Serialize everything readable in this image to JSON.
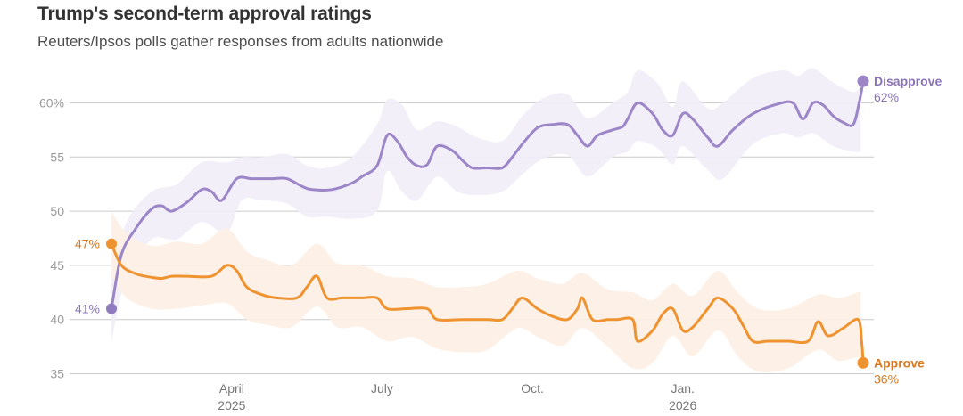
{
  "title": "Trump's second-term approval ratings",
  "subtitle": "Reuters/Ipsos polls gather responses from adults nationwide",
  "colors": {
    "disapprove": "#9c86c7",
    "disapprove_label": "#8a74b9",
    "disapprove_band": "#f1edf8",
    "approve": "#ef9230",
    "approve_label": "#d9771c",
    "approve_band": "#fdf0e4",
    "grid": "#cccccc",
    "start_dot": "#8f7bc0"
  },
  "chart_data": {
    "type": "line",
    "title": "Trump's second-term approval ratings",
    "subtitle": "Reuters/Ipsos polls gather responses from adults nationwide",
    "xlabel": "",
    "ylabel": "",
    "ylim": [
      35,
      62
    ],
    "xlim": [
      0,
      15
    ],
    "y_ticks": [
      {
        "value": 60,
        "label": "60%"
      },
      {
        "value": 55,
        "label": "55"
      },
      {
        "value": 50,
        "label": "50"
      },
      {
        "value": 45,
        "label": "45"
      },
      {
        "value": 40,
        "label": "40"
      },
      {
        "value": 35,
        "label": "35"
      }
    ],
    "x_ticks": [
      {
        "value": 2.4,
        "label": "April",
        "sublabel": "2025"
      },
      {
        "value": 5.4,
        "label": "July",
        "sublabel": ""
      },
      {
        "value": 8.4,
        "label": "Oct.",
        "sublabel": ""
      },
      {
        "value": 11.4,
        "label": "Jan.",
        "sublabel": "2026"
      }
    ],
    "series": [
      {
        "name": "Disapprove",
        "start_label": "41%",
        "end_label": "62%",
        "points": [
          [
            0.0,
            41
          ],
          [
            0.2,
            46
          ],
          [
            0.5,
            48.5
          ],
          [
            0.8,
            50.2
          ],
          [
            1.0,
            50.5
          ],
          [
            1.2,
            50.0
          ],
          [
            1.5,
            50.8
          ],
          [
            1.8,
            52.0
          ],
          [
            2.0,
            51.8
          ],
          [
            2.2,
            51.0
          ],
          [
            2.5,
            53.0
          ],
          [
            2.8,
            53.0
          ],
          [
            3.2,
            53.0
          ],
          [
            3.5,
            53.0
          ],
          [
            3.8,
            52.3
          ],
          [
            4.0,
            52.0
          ],
          [
            4.4,
            52.0
          ],
          [
            4.8,
            52.6
          ],
          [
            5.0,
            53.2
          ],
          [
            5.3,
            54.2
          ],
          [
            5.5,
            57.0
          ],
          [
            5.7,
            56.5
          ],
          [
            5.9,
            55.0
          ],
          [
            6.1,
            54.2
          ],
          [
            6.3,
            54.3
          ],
          [
            6.5,
            56.0
          ],
          [
            6.8,
            55.6
          ],
          [
            7.0,
            54.7
          ],
          [
            7.2,
            54.0
          ],
          [
            7.5,
            54.0
          ],
          [
            7.8,
            54.0
          ],
          [
            8.0,
            55.0
          ],
          [
            8.2,
            56.2
          ],
          [
            8.5,
            57.7
          ],
          [
            8.8,
            58.0
          ],
          [
            9.1,
            58.0
          ],
          [
            9.3,
            57.0
          ],
          [
            9.5,
            56.0
          ],
          [
            9.7,
            57.0
          ],
          [
            10.0,
            57.5
          ],
          [
            10.2,
            57.8
          ],
          [
            10.3,
            58.5
          ],
          [
            10.5,
            60.0
          ],
          [
            10.8,
            59.0
          ],
          [
            11.0,
            57.5
          ],
          [
            11.2,
            57.0
          ],
          [
            11.4,
            59.0
          ],
          [
            11.6,
            58.5
          ],
          [
            11.9,
            56.8
          ],
          [
            12.1,
            56.0
          ],
          [
            12.4,
            57.5
          ],
          [
            12.8,
            59.0
          ],
          [
            13.3,
            59.9
          ],
          [
            13.6,
            60.0
          ],
          [
            13.8,
            58.5
          ],
          [
            14.0,
            60.0
          ],
          [
            14.2,
            59.8
          ],
          [
            14.4,
            58.8
          ],
          [
            14.6,
            58.2
          ],
          [
            14.8,
            58.0
          ],
          [
            14.92,
            60.0
          ],
          [
            15.0,
            62.0
          ]
        ]
      },
      {
        "name": "Approve",
        "start_label": "47%",
        "end_label": "36%",
        "points": [
          [
            0.0,
            47
          ],
          [
            0.2,
            45.0
          ],
          [
            0.5,
            44.2
          ],
          [
            0.8,
            43.9
          ],
          [
            1.0,
            43.8
          ],
          [
            1.2,
            44.0
          ],
          [
            1.5,
            44.0
          ],
          [
            2.0,
            44.0
          ],
          [
            2.3,
            45.0
          ],
          [
            2.5,
            44.5
          ],
          [
            2.7,
            43.0
          ],
          [
            3.0,
            42.3
          ],
          [
            3.3,
            42.0
          ],
          [
            3.7,
            42.0
          ],
          [
            3.9,
            43.0
          ],
          [
            4.1,
            44.0
          ],
          [
            4.3,
            42.0
          ],
          [
            4.6,
            42.0
          ],
          [
            5.0,
            42.0
          ],
          [
            5.3,
            42.0
          ],
          [
            5.5,
            41.0
          ],
          [
            5.9,
            41.0
          ],
          [
            6.3,
            41.0
          ],
          [
            6.5,
            40.0
          ],
          [
            7.0,
            40.0
          ],
          [
            7.5,
            40.0
          ],
          [
            7.8,
            40.0
          ],
          [
            8.0,
            41.0
          ],
          [
            8.2,
            42.0
          ],
          [
            8.5,
            41.0
          ],
          [
            8.8,
            40.3
          ],
          [
            9.1,
            40.0
          ],
          [
            9.3,
            41.0
          ],
          [
            9.4,
            42.0
          ],
          [
            9.6,
            40.0
          ],
          [
            9.9,
            40.0
          ],
          [
            10.1,
            40.0
          ],
          [
            10.4,
            40.0
          ],
          [
            10.5,
            38.0
          ],
          [
            10.8,
            39.0
          ],
          [
            11.0,
            40.5
          ],
          [
            11.2,
            41.0
          ],
          [
            11.4,
            39.0
          ],
          [
            11.6,
            39.3
          ],
          [
            11.9,
            41.0
          ],
          [
            12.1,
            42.0
          ],
          [
            12.4,
            41.0
          ],
          [
            12.6,
            39.5
          ],
          [
            12.8,
            38.0
          ],
          [
            13.1,
            38.0
          ],
          [
            13.5,
            38.0
          ],
          [
            13.9,
            38.0
          ],
          [
            14.1,
            39.8
          ],
          [
            14.3,
            38.5
          ],
          [
            14.6,
            39.2
          ],
          [
            14.9,
            40.0
          ],
          [
            14.97,
            38.0
          ],
          [
            15.0,
            36.0
          ]
        ]
      }
    ],
    "confidence_bands": [
      {
        "name": "Disapprove",
        "upper": [
          [
            0.0,
            44
          ],
          [
            0.3,
            49
          ],
          [
            0.8,
            51.8
          ],
          [
            1.3,
            52.5
          ],
          [
            1.8,
            54.5
          ],
          [
            2.3,
            54.5
          ],
          [
            2.6,
            55.0
          ],
          [
            3.0,
            55.0
          ],
          [
            3.5,
            55.3
          ],
          [
            3.9,
            54.2
          ],
          [
            4.3,
            54.0
          ],
          [
            4.8,
            55.0
          ],
          [
            5.3,
            58.0
          ],
          [
            5.5,
            60.3
          ],
          [
            5.8,
            59.8
          ],
          [
            6.1,
            57.5
          ],
          [
            6.5,
            58.3
          ],
          [
            6.9,
            57.8
          ],
          [
            7.3,
            56.8
          ],
          [
            7.8,
            56.5
          ],
          [
            8.2,
            58.8
          ],
          [
            8.6,
            60.4
          ],
          [
            9.1,
            60.8
          ],
          [
            9.5,
            58.6
          ],
          [
            10.0,
            60.0
          ],
          [
            10.3,
            61.0
          ],
          [
            10.5,
            63.0
          ],
          [
            10.9,
            61.8
          ],
          [
            11.2,
            59.6
          ],
          [
            11.4,
            62.0
          ],
          [
            11.9,
            59.5
          ],
          [
            12.2,
            60.0
          ],
          [
            12.8,
            62.3
          ],
          [
            13.4,
            63.0
          ],
          [
            13.7,
            62.5
          ],
          [
            14.0,
            63.2
          ],
          [
            14.4,
            61.9
          ],
          [
            14.8,
            61.0
          ],
          [
            14.95,
            61.5
          ]
        ],
        "lower": [
          [
            14.95,
            55.5
          ],
          [
            14.8,
            55.5
          ],
          [
            14.4,
            56.0
          ],
          [
            14.0,
            57.2
          ],
          [
            13.7,
            56.8
          ],
          [
            13.4,
            57.2
          ],
          [
            12.8,
            56.2
          ],
          [
            12.2,
            53.0
          ],
          [
            11.9,
            53.8
          ],
          [
            11.4,
            56.0
          ],
          [
            11.2,
            54.3
          ],
          [
            10.9,
            55.8
          ],
          [
            10.5,
            56.5
          ],
          [
            10.3,
            55.5
          ],
          [
            10.0,
            55.0
          ],
          [
            9.5,
            53.2
          ],
          [
            9.1,
            55.2
          ],
          [
            8.6,
            54.8
          ],
          [
            8.2,
            53.4
          ],
          [
            7.8,
            51.8
          ],
          [
            7.3,
            51.5
          ],
          [
            6.9,
            51.8
          ],
          [
            6.5,
            53.2
          ],
          [
            6.1,
            51.0
          ],
          [
            5.8,
            51.8
          ],
          [
            5.5,
            53.7
          ],
          [
            5.3,
            50.0
          ],
          [
            4.8,
            49.3
          ],
          [
            4.3,
            49.5
          ],
          [
            3.9,
            49.5
          ],
          [
            3.5,
            50.7
          ],
          [
            3.0,
            51.0
          ],
          [
            2.6,
            51.0
          ],
          [
            2.3,
            48.0
          ],
          [
            1.8,
            49.0
          ],
          [
            1.3,
            47.4
          ],
          [
            0.8,
            47.4
          ],
          [
            0.3,
            44.0
          ],
          [
            0.0,
            38
          ]
        ]
      },
      {
        "name": "Approve",
        "upper": [
          [
            0.0,
            50
          ],
          [
            0.3,
            48.0
          ],
          [
            0.8,
            46.8
          ],
          [
            1.3,
            47.2
          ],
          [
            1.8,
            47.0
          ],
          [
            2.3,
            48.4
          ],
          [
            2.7,
            46.3
          ],
          [
            3.1,
            45.5
          ],
          [
            3.6,
            45.0
          ],
          [
            4.1,
            47.0
          ],
          [
            4.5,
            45.2
          ],
          [
            5.0,
            45.0
          ],
          [
            5.5,
            44.0
          ],
          [
            6.0,
            43.8
          ],
          [
            6.5,
            43.0
          ],
          [
            7.0,
            43.0
          ],
          [
            7.5,
            43.3
          ],
          [
            8.1,
            44.5
          ],
          [
            8.5,
            43.8
          ],
          [
            9.0,
            43.3
          ],
          [
            9.4,
            44.3
          ],
          [
            9.9,
            42.8
          ],
          [
            10.4,
            42.5
          ],
          [
            10.8,
            41.8
          ],
          [
            11.2,
            43.3
          ],
          [
            11.6,
            42.2
          ],
          [
            12.1,
            44.5
          ],
          [
            12.5,
            42.5
          ],
          [
            12.9,
            41.0
          ],
          [
            13.5,
            41.0
          ],
          [
            14.1,
            42.3
          ],
          [
            14.5,
            42.0
          ],
          [
            14.9,
            42.5
          ],
          [
            14.95,
            42.5
          ]
        ],
        "lower": [
          [
            14.95,
            35.8
          ],
          [
            14.9,
            36.5
          ],
          [
            14.5,
            36.2
          ],
          [
            14.1,
            37.2
          ],
          [
            13.5,
            35.5
          ],
          [
            12.9,
            35.2
          ],
          [
            12.5,
            36.6
          ],
          [
            12.1,
            39.0
          ],
          [
            11.6,
            36.6
          ],
          [
            11.2,
            38.5
          ],
          [
            10.8,
            36.0
          ],
          [
            10.4,
            35.5
          ],
          [
            9.9,
            37.5
          ],
          [
            9.4,
            39.2
          ],
          [
            9.0,
            37.6
          ],
          [
            8.5,
            38.4
          ],
          [
            8.1,
            39.2
          ],
          [
            7.5,
            37.2
          ],
          [
            7.0,
            37.0
          ],
          [
            6.5,
            37.3
          ],
          [
            6.0,
            38.4
          ],
          [
            5.5,
            38.0
          ],
          [
            5.0,
            39.3
          ],
          [
            4.5,
            39.3
          ],
          [
            4.1,
            41.2
          ],
          [
            3.6,
            39.3
          ],
          [
            3.1,
            39.5
          ],
          [
            2.7,
            40.0
          ],
          [
            2.3,
            41.5
          ],
          [
            1.8,
            41.3
          ],
          [
            1.3,
            41.0
          ],
          [
            0.8,
            41.0
          ],
          [
            0.3,
            42.0
          ],
          [
            0.0,
            44
          ]
        ]
      }
    ]
  }
}
